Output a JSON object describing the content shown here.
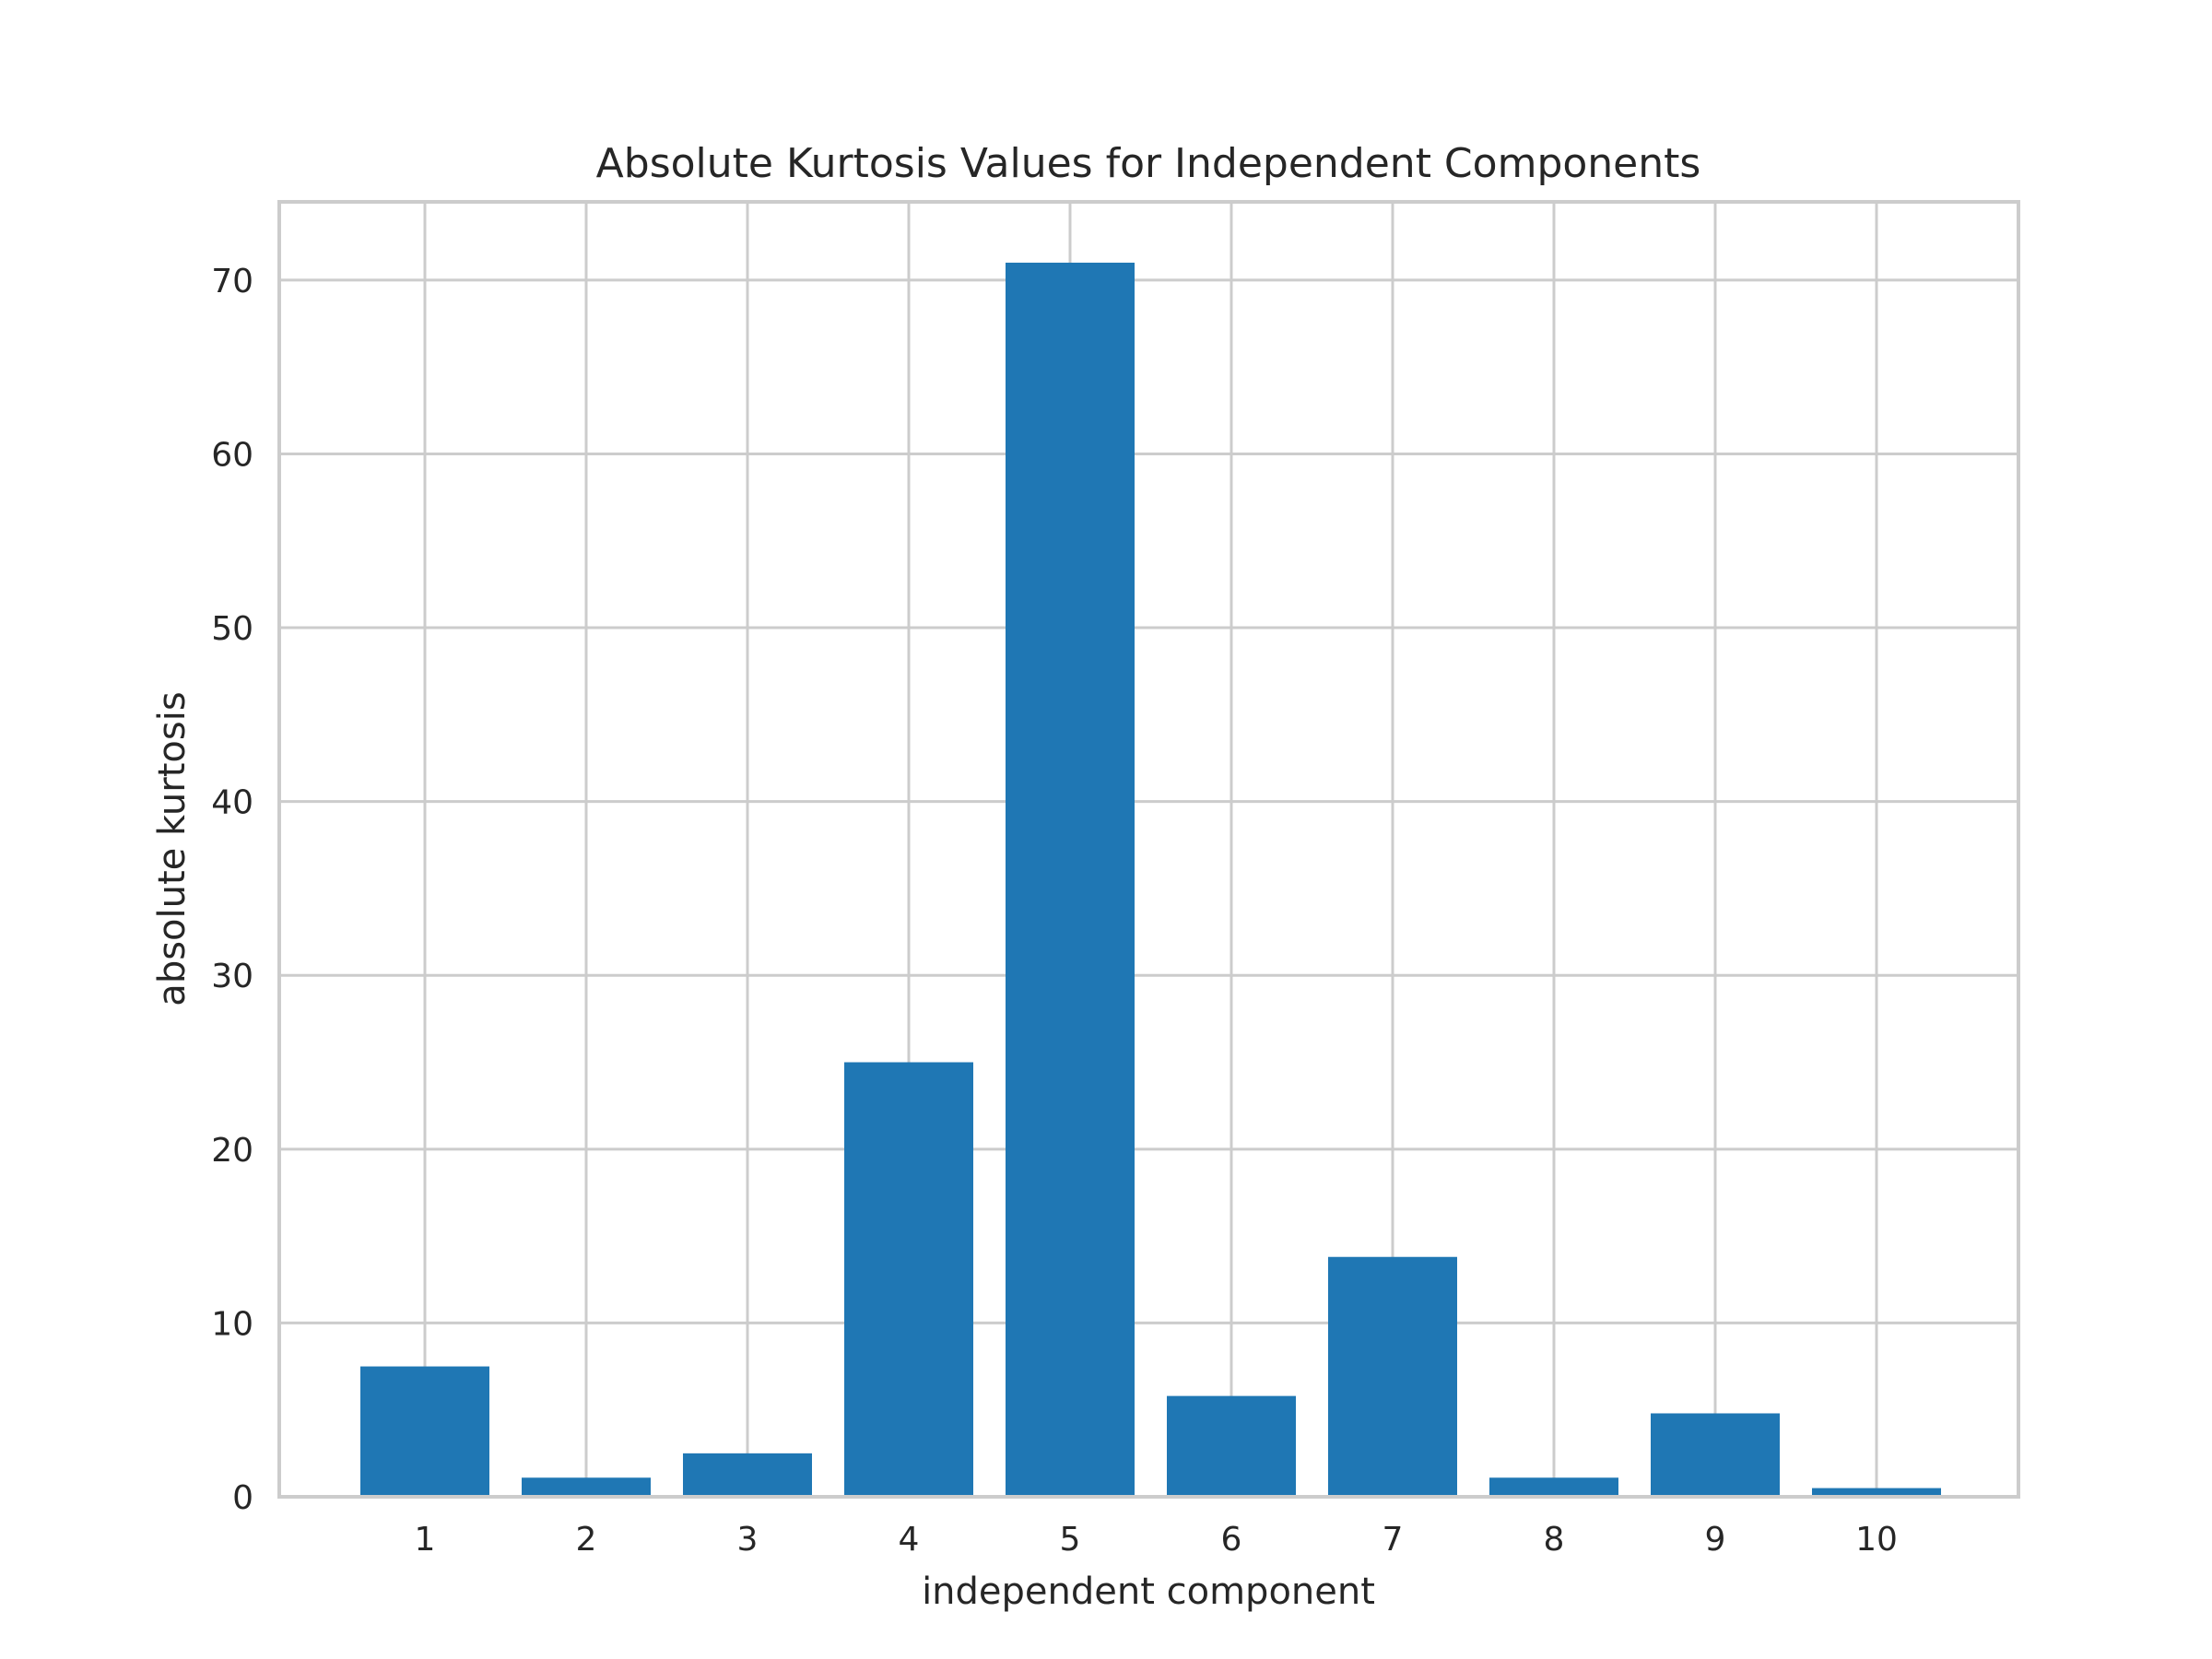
{
  "chart_data": {
    "type": "bar",
    "title": "Absolute Kurtosis Values for Independent Components",
    "xlabel": "independent component",
    "ylabel": "absolute kurtosis",
    "categories": [
      "1",
      "2",
      "3",
      "4",
      "5",
      "6",
      "7",
      "8",
      "9",
      "10"
    ],
    "values": [
      7.5,
      1.1,
      2.5,
      25.0,
      71.0,
      5.8,
      13.8,
      1.1,
      4.8,
      0.5
    ],
    "ylim": [
      0,
      74.5
    ],
    "yticks": [
      "0",
      "10",
      "20",
      "30",
      "40",
      "50",
      "60",
      "70"
    ],
    "grid": true,
    "bar_color": "#1f77b4",
    "grid_color": "#cccccc"
  }
}
